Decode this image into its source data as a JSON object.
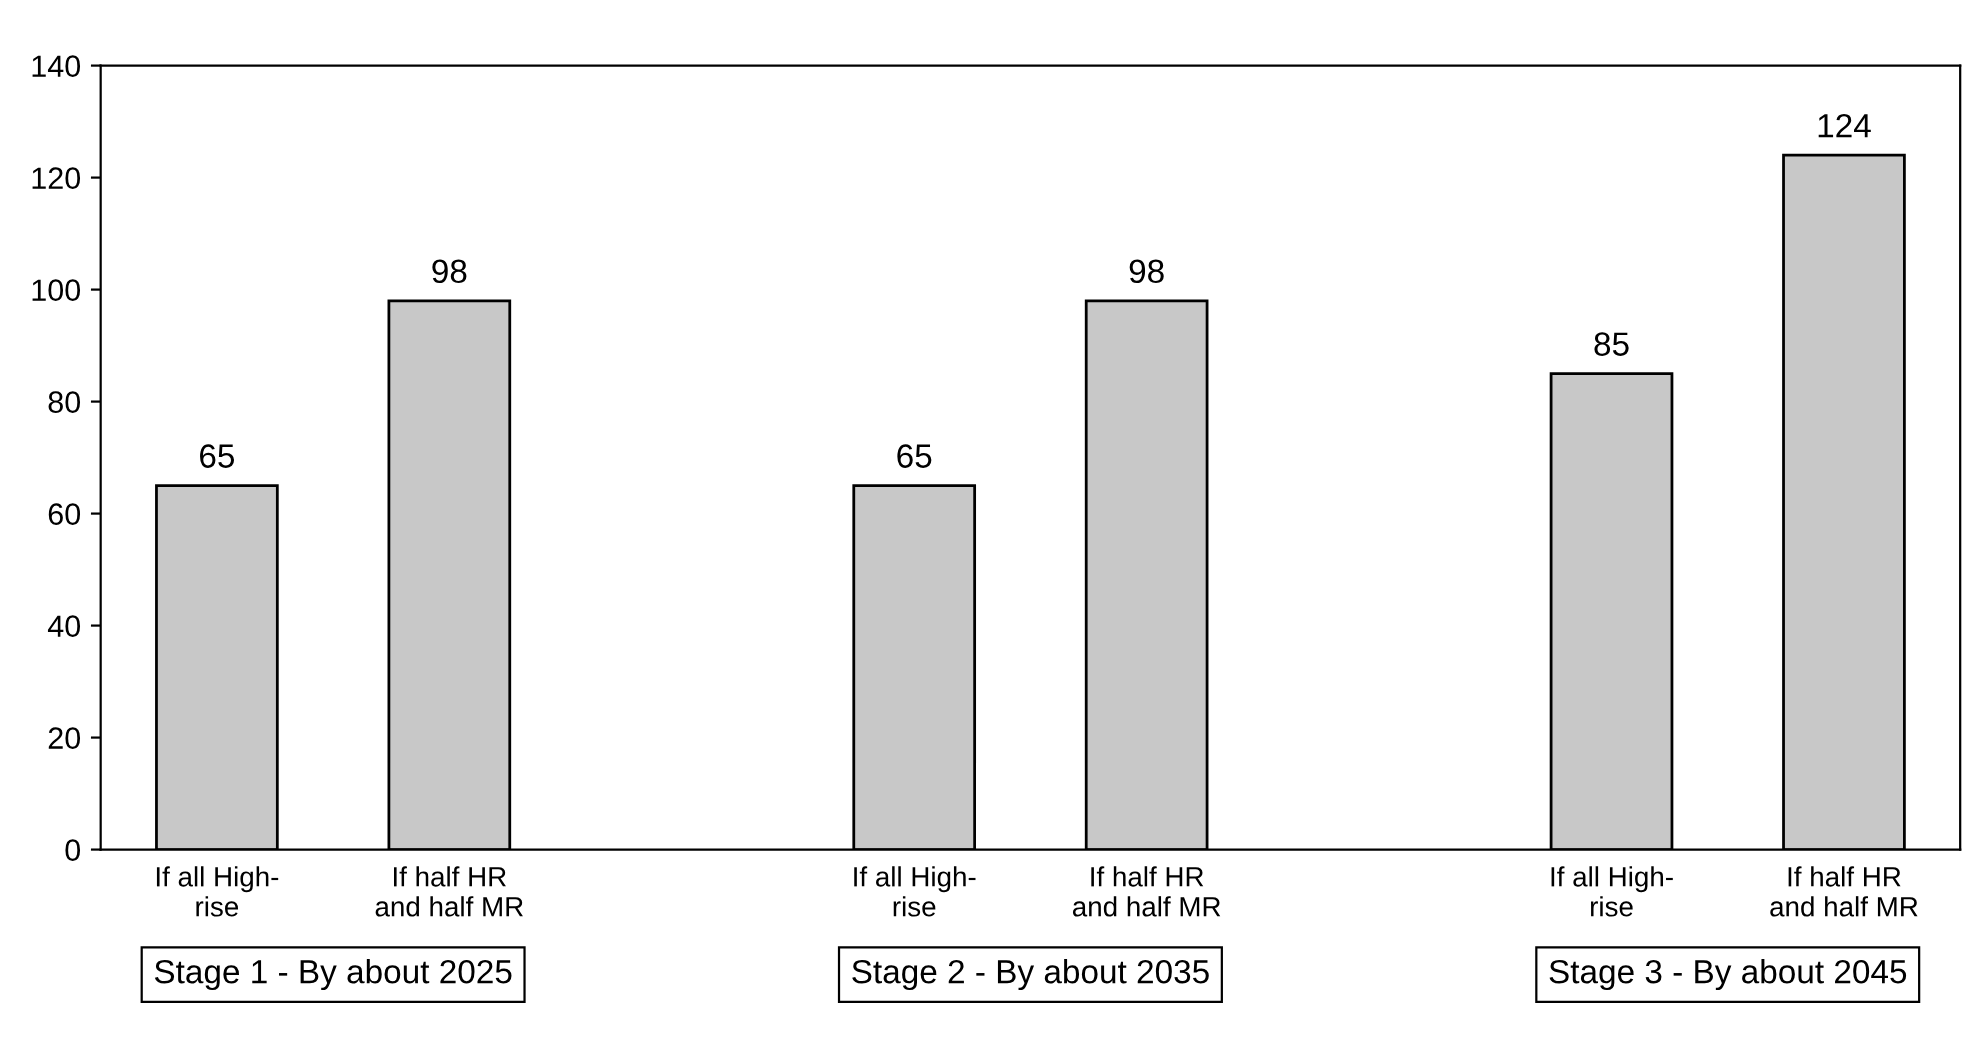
{
  "chart_data": {
    "type": "bar",
    "categories": [
      "If all High-\nrise",
      "If half HR\nand half MR",
      null,
      "If all High-\nrise",
      "If half HR\nand half MR",
      null,
      "If all High-\nrise",
      "If half HR\nand half MR"
    ],
    "values": [
      65,
      98,
      null,
      65,
      98,
      null,
      85,
      124
    ],
    "color": "#c8c8c8",
    "ylim": [
      0,
      140
    ],
    "yticks": [
      0,
      20,
      40,
      60,
      80,
      100,
      120,
      140
    ],
    "grid": false,
    "data_labels": true,
    "annotations": [
      "Stage 1 - By about 2025",
      "Stage 2 - By about 2035",
      "Stage 3 - By about 2045"
    ]
  }
}
